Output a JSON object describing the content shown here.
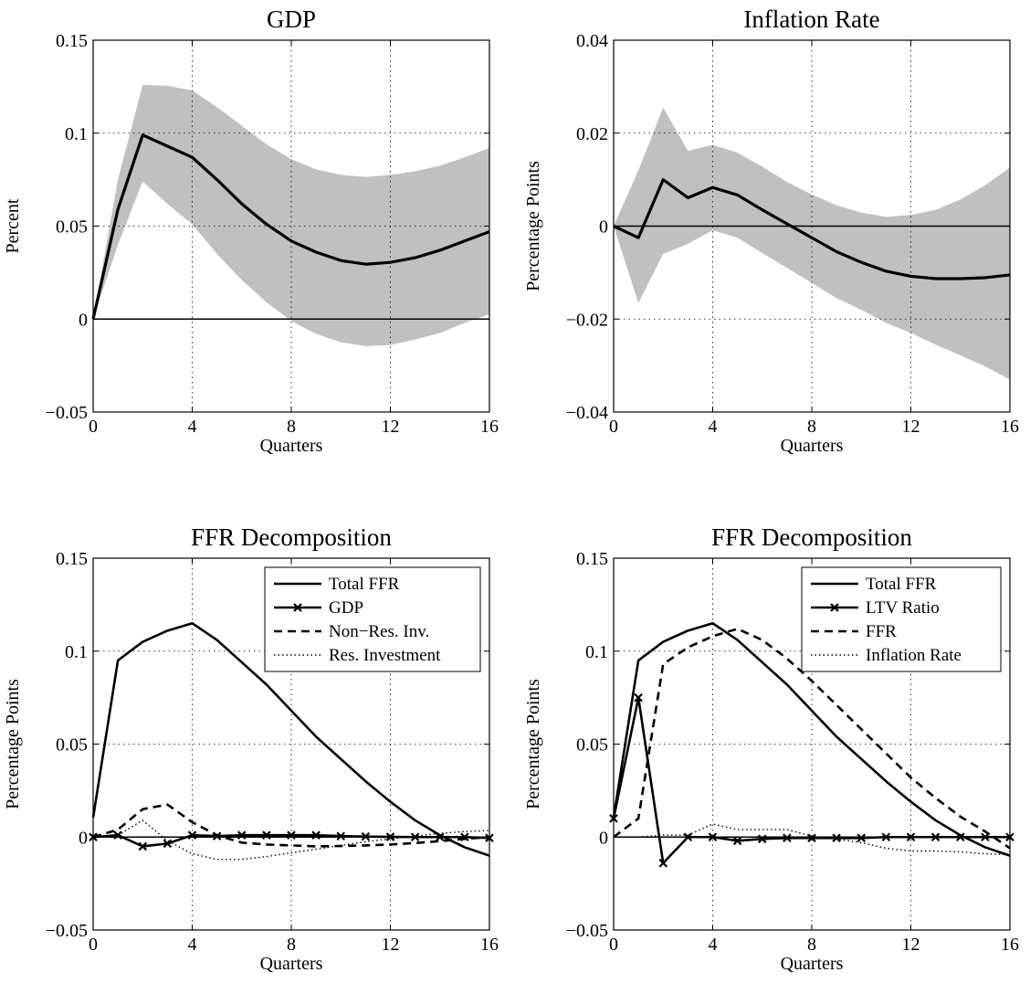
{
  "colors": {
    "band": "#c0c0c0",
    "line": "#000000",
    "background": "#ffffff"
  },
  "chart_data": [
    {
      "type": "line",
      "title": "GDP",
      "xlabel": "Quarters",
      "ylabel": "Percent",
      "xlim": [
        0,
        16
      ],
      "ylim": [
        -0.05,
        0.15
      ],
      "xticks": [
        0,
        4,
        8,
        12,
        16
      ],
      "yticks": [
        -0.05,
        0,
        0.05,
        0.1,
        0.15
      ],
      "ytick_labels": [
        "−0.05",
        "0",
        "0.05",
        "0.1",
        "0.15"
      ],
      "grid": "dotted",
      "zero_line": true,
      "x": [
        0,
        1,
        2,
        3,
        4,
        5,
        6,
        7,
        8,
        9,
        10,
        11,
        12,
        13,
        14,
        15,
        16
      ],
      "band": {
        "upper": [
          0,
          0.075,
          0.126,
          0.1255,
          0.123,
          0.114,
          0.104,
          0.094,
          0.086,
          0.0805,
          0.0775,
          0.0765,
          0.0775,
          0.0795,
          0.0825,
          0.087,
          0.092
        ],
        "lower": [
          0,
          0.04,
          0.074,
          0.062,
          0.051,
          0.035,
          0.021,
          0.009,
          -0.001,
          -0.008,
          -0.0125,
          -0.0145,
          -0.014,
          -0.011,
          -0.0075,
          -0.002,
          0.0025
        ]
      },
      "series": [
        {
          "values": [
            0,
            0.059,
            0.099,
            0.093,
            0.087,
            0.075,
            0.062,
            0.051,
            0.042,
            0.036,
            0.0315,
            0.0295,
            0.0305,
            0.033,
            0.037,
            0.042,
            0.047
          ],
          "style": "solid-thick"
        }
      ]
    },
    {
      "type": "line",
      "title": "Inflation Rate",
      "xlabel": "Quarters",
      "ylabel": "Percentage Points",
      "xlim": [
        0,
        16
      ],
      "ylim": [
        -0.04,
        0.04
      ],
      "xticks": [
        0,
        4,
        8,
        12,
        16
      ],
      "yticks": [
        -0.04,
        -0.02,
        0,
        0.02,
        0.04
      ],
      "ytick_labels": [
        "−0.04",
        "−0.02",
        "0",
        "0.02",
        "0.04"
      ],
      "grid": "dotted",
      "zero_line": true,
      "x": [
        0,
        1,
        2,
        3,
        4,
        5,
        6,
        7,
        8,
        9,
        10,
        11,
        12,
        13,
        14,
        15,
        16
      ],
      "band": {
        "upper": [
          0,
          0.012,
          0.0255,
          0.0162,
          0.0175,
          0.0158,
          0.0128,
          0.0095,
          0.0068,
          0.0045,
          0.0029,
          0.002,
          0.0024,
          0.0035,
          0.0057,
          0.0088,
          0.0126
        ],
        "lower": [
          0,
          -0.0165,
          -0.006,
          -0.0038,
          -0.0009,
          -0.0025,
          -0.0058,
          -0.009,
          -0.0122,
          -0.0155,
          -0.018,
          -0.0208,
          -0.023,
          -0.0255,
          -0.0278,
          -0.0302,
          -0.033
        ]
      },
      "series": [
        {
          "values": [
            0,
            -0.0025,
            0.01,
            0.0061,
            0.0083,
            0.0067,
            0.0035,
            0.0005,
            -0.0025,
            -0.0055,
            -0.0078,
            -0.0097,
            -0.0108,
            -0.0113,
            -0.0113,
            -0.0111,
            -0.0105
          ],
          "style": "solid-thick"
        }
      ]
    },
    {
      "type": "line",
      "title": "FFR Decomposition",
      "xlabel": "Quarters",
      "ylabel": "Percentage Points",
      "xlim": [
        0,
        16
      ],
      "ylim": [
        -0.05,
        0.15
      ],
      "xticks": [
        0,
        4,
        8,
        12,
        16
      ],
      "yticks": [
        -0.05,
        0,
        0.05,
        0.1,
        0.15
      ],
      "ytick_labels": [
        "−0.05",
        "0",
        "0.05",
        "0.1",
        "0.15"
      ],
      "grid": "dotted",
      "zero_line": true,
      "legend": "top-right",
      "x": [
        0,
        1,
        2,
        3,
        4,
        5,
        6,
        7,
        8,
        9,
        10,
        11,
        12,
        13,
        14,
        15,
        16
      ],
      "series": [
        {
          "name": "Total FFR",
          "style": "solid",
          "values": [
            0.0105,
            0.095,
            0.105,
            0.111,
            0.115,
            0.106,
            0.094,
            0.082,
            0.068,
            0.054,
            0.042,
            0.03,
            0.019,
            0.009,
            0.001,
            -0.0055,
            -0.01
          ]
        },
        {
          "name": "GDP",
          "style": "solid-x",
          "values": [
            0,
            0.001,
            -0.005,
            -0.0035,
            0.001,
            0.0005,
            0.001,
            0.001,
            0.001,
            0.001,
            0.0005,
            0.0003,
            0.0001,
            0,
            0,
            0,
            -0.0005
          ]
        },
        {
          "name": "Non−Res. Inv.",
          "style": "dashed",
          "values": [
            0,
            0.004,
            0.015,
            0.0175,
            0.008,
            0.001,
            -0.003,
            -0.004,
            -0.0045,
            -0.005,
            -0.0048,
            -0.0045,
            -0.004,
            -0.0032,
            -0.0022,
            -0.001,
            0
          ]
        },
        {
          "name": "Res. Investment",
          "style": "dotted",
          "values": [
            0,
            0.001,
            0.009,
            -0.002,
            -0.009,
            -0.012,
            -0.012,
            -0.0105,
            -0.0085,
            -0.0065,
            -0.0045,
            -0.0025,
            -0.001,
            0.0005,
            0.002,
            0.003,
            0.0035
          ]
        }
      ]
    },
    {
      "type": "line",
      "title": "FFR Decomposition",
      "xlabel": "Quarters",
      "ylabel": "Percentage Points",
      "xlim": [
        0,
        16
      ],
      "ylim": [
        -0.05,
        0.15
      ],
      "xticks": [
        0,
        4,
        8,
        12,
        16
      ],
      "yticks": [
        -0.05,
        0,
        0.05,
        0.1,
        0.15
      ],
      "ytick_labels": [
        "−0.05",
        "0",
        "0.05",
        "0.1",
        "0.15"
      ],
      "grid": "dotted",
      "zero_line": true,
      "legend": "top-right",
      "x": [
        0,
        1,
        2,
        3,
        4,
        5,
        6,
        7,
        8,
        9,
        10,
        11,
        12,
        13,
        14,
        15,
        16
      ],
      "series": [
        {
          "name": "Total FFR",
          "style": "solid",
          "values": [
            0.0105,
            0.095,
            0.105,
            0.111,
            0.115,
            0.106,
            0.094,
            0.082,
            0.068,
            0.054,
            0.042,
            0.03,
            0.019,
            0.009,
            0.001,
            -0.0055,
            -0.01
          ]
        },
        {
          "name": "LTV Ratio",
          "style": "solid-x",
          "values": [
            0.01,
            0.075,
            -0.014,
            0,
            0,
            -0.002,
            -0.001,
            -0.0005,
            -0.0005,
            -0.0005,
            -0.0005,
            0,
            0,
            0,
            0,
            0,
            0
          ]
        },
        {
          "name": "FFR",
          "style": "dashed",
          "values": [
            0,
            0.01,
            0.093,
            0.102,
            0.108,
            0.112,
            0.106,
            0.096,
            0.084,
            0.071,
            0.058,
            0.045,
            0.032,
            0.021,
            0.011,
            0.003,
            -0.006
          ]
        },
        {
          "name": "Inflation Rate",
          "style": "dotted",
          "values": [
            0,
            0,
            0.001,
            0.001,
            0.007,
            0.004,
            0.004,
            0.004,
            0.0005,
            -0.001,
            -0.003,
            -0.006,
            -0.0075,
            -0.0075,
            -0.008,
            -0.009,
            -0.0095
          ]
        }
      ]
    }
  ]
}
